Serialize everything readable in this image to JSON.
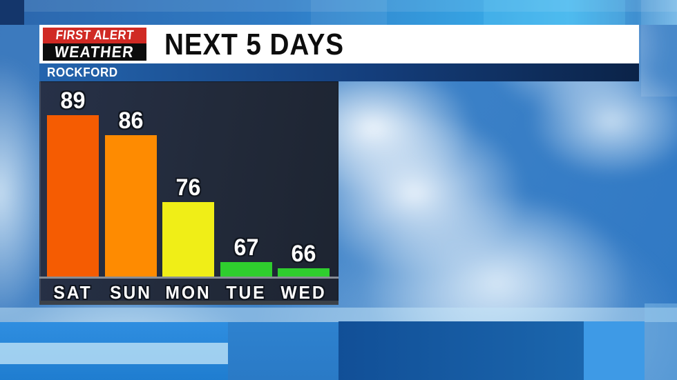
{
  "header": {
    "logo_line1": "FIRST ALERT",
    "logo_line2": "WEATHER",
    "title": "NEXT 5 DAYS",
    "location": "ROCKFORD"
  },
  "colors": {
    "logo_red": "#d02a24",
    "logo_black": "#0c0c0c",
    "header_bg": "#ffffff",
    "title_text": "#0d0d0d",
    "location_band_left": "#2465ae",
    "location_band_right": "#0b2348",
    "location_text": "#ffffff",
    "panel_bg": "#232b3c",
    "baseline": "#878d95",
    "label_text": "#ffffff",
    "label_outline": "#10151e"
  },
  "chart_data": {
    "type": "bar",
    "title": "NEXT 5 DAYS",
    "subtitle": "ROCKFORD",
    "categories": [
      "SAT",
      "SUN",
      "MON",
      "TUE",
      "WED"
    ],
    "values": [
      89,
      86,
      76,
      67,
      66
    ],
    "bar_colors": [
      "#f55c02",
      "#fe8b01",
      "#f0ee17",
      "#2fce2e",
      "#2fce2e"
    ],
    "value_labels_shown": true,
    "xlabel": "",
    "ylabel": "",
    "ylim": [
      64.8,
      98
    ],
    "grid": false,
    "legend": false
  }
}
